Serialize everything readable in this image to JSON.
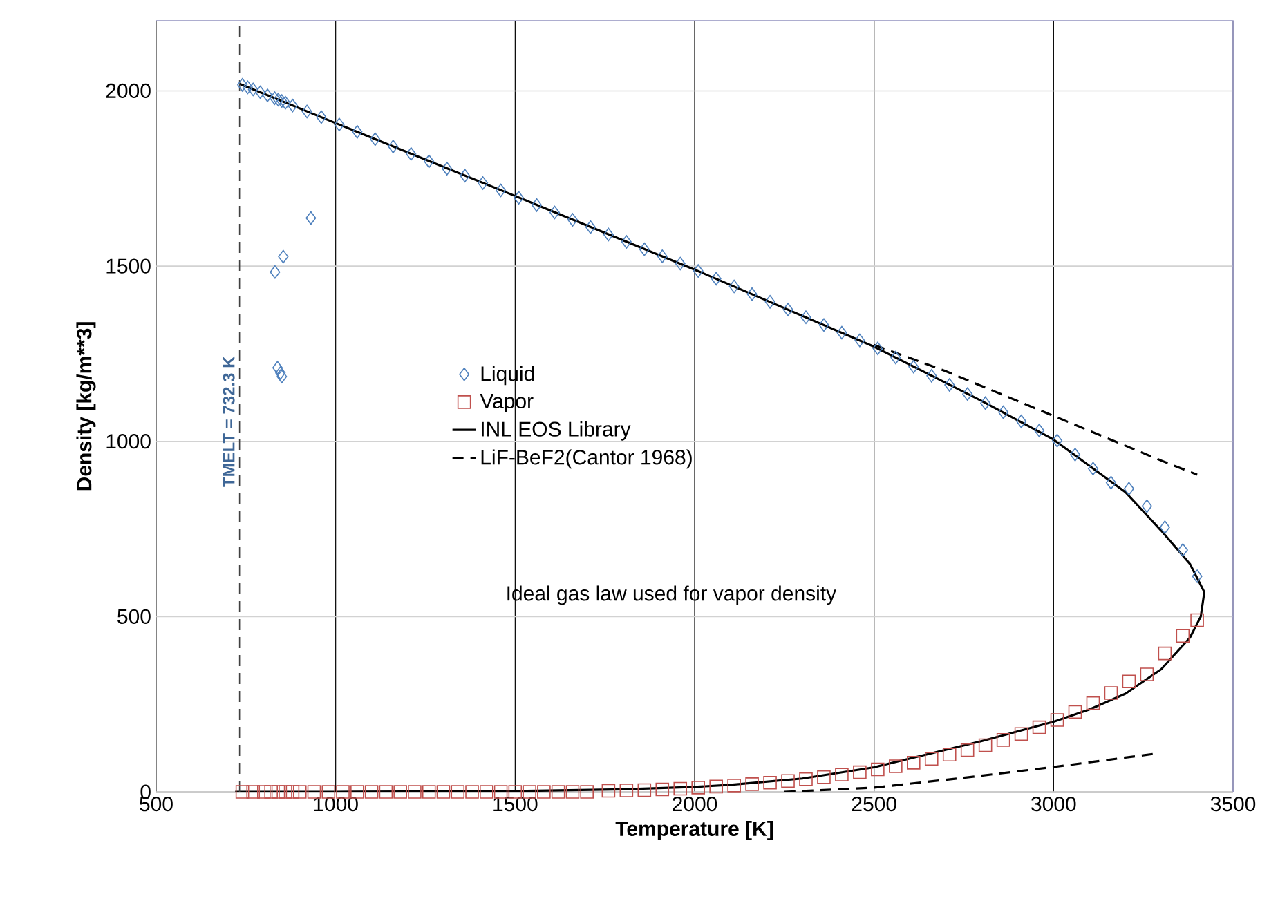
{
  "chart_data": {
    "type": "scatter",
    "xlabel": "Temperature [K]",
    "ylabel": "Density [kg/m**3]",
    "xlim": [
      500,
      3500
    ],
    "ylim": [
      0,
      2200
    ],
    "xticks": [
      500,
      1000,
      1500,
      2000,
      2500,
      3000,
      3500
    ],
    "yticks": [
      0,
      500,
      1000,
      1500,
      2000
    ],
    "grid": true,
    "legend": "center left",
    "annotations": [
      "Ideal gas law used for vapor density"
    ],
    "ref_lines": [
      {
        "axis": "x",
        "value": 732.3,
        "label": "TMELT = 732.3 K",
        "color": "#404040",
        "line_style": "dashed"
      }
    ],
    "series": [
      {
        "name": "Liquid",
        "marker": "diamond",
        "color": "#4f81bd",
        "x": [
          740,
          755,
          770,
          790,
          810,
          830,
          840,
          850,
          860,
          880,
          920,
          960,
          1010,
          1060,
          1110,
          1160,
          1210,
          1260,
          1310,
          1360,
          1410,
          1460,
          1510,
          1560,
          1610,
          1660,
          1710,
          1760,
          1810,
          1860,
          1910,
          1960,
          2010,
          2060,
          2110,
          2160,
          2210,
          2260,
          2310,
          2360,
          2410,
          2460,
          2510,
          2560,
          2610,
          2660,
          2710,
          2760,
          2810,
          2860,
          2910,
          2960,
          3010,
          3060,
          3110,
          3160,
          3210,
          3260,
          3310,
          3360,
          3400,
          931,
          854,
          831,
          846,
          838,
          850
        ],
        "values": [
          2017,
          2010,
          2004,
          1996,
          1987,
          1979,
          1975,
          1971,
          1966,
          1958,
          1941,
          1925,
          1904,
          1883,
          1862,
          1841,
          1820,
          1799,
          1778,
          1758,
          1737,
          1716,
          1695,
          1674,
          1653,
          1632,
          1611,
          1590,
          1569,
          1548,
          1528,
          1507,
          1486,
          1464,
          1442,
          1420,
          1398,
          1376,
          1354,
          1332,
          1310,
          1288,
          1265,
          1239,
          1213,
          1187,
          1161,
          1135,
          1109,
          1083,
          1057,
          1031,
          1002,
          962,
          922,
          882,
          865,
          815,
          755,
          690,
          615,
          1637,
          1527,
          1483,
          1195,
          1210,
          1185
        ]
      },
      {
        "name": "Vapor",
        "marker": "square",
        "color": "#c0504d",
        "x": [
          740,
          770,
          800,
          820,
          840,
          860,
          880,
          900,
          940,
          980,
          1020,
          1060,
          1100,
          1140,
          1180,
          1220,
          1260,
          1300,
          1340,
          1380,
          1420,
          1460,
          1500,
          1540,
          1580,
          1620,
          1660,
          1700,
          1760,
          1810,
          1860,
          1910,
          1960,
          2010,
          2060,
          2110,
          2160,
          2210,
          2260,
          2310,
          2360,
          2410,
          2460,
          2510,
          2560,
          2610,
          2660,
          2710,
          2760,
          2810,
          2860,
          2910,
          2960,
          3010,
          3060,
          3110,
          3160,
          3210,
          3260,
          3310,
          3360,
          3400
        ],
        "values": [
          0,
          0,
          0,
          0,
          0,
          0,
          0,
          0,
          0,
          0,
          0,
          0,
          0,
          0,
          0,
          0,
          0,
          0,
          0,
          0,
          0,
          0,
          0,
          0,
          0,
          0,
          0,
          0,
          3,
          4,
          5,
          7,
          9,
          12,
          15,
          18,
          22,
          26,
          31,
          36,
          42,
          49,
          56,
          64,
          73,
          83,
          94,
          106,
          119,
          133,
          148,
          165,
          184,
          205,
          228,
          253,
          282,
          315,
          335,
          395,
          445,
          490
        ]
      },
      {
        "name": "INL EOS Library",
        "type": "line",
        "line_style": "solid",
        "color": "#000000",
        "x": [
          732,
          1000,
          1500,
          2000,
          2500,
          2800,
          3000,
          3100,
          3200,
          3300,
          3380,
          3420,
          3410,
          3380,
          3300,
          3200,
          3100,
          3000,
          2800,
          2600,
          2500,
          2300,
          2100,
          2000,
          1800,
          1500,
          1000,
          720
        ],
        "values": [
          2020,
          1908,
          1700,
          1490,
          1270,
          1115,
          1005,
          930,
          855,
          745,
          650,
          570,
          500,
          440,
          350,
          280,
          235,
          200,
          145,
          95,
          70,
          38,
          20,
          14,
          7,
          2,
          0,
          0
        ]
      },
      {
        "name": "LiF-BeF2(Cantor 1968)",
        "type": "line",
        "line_style": "dashed",
        "color": "#000000",
        "x": [
          2500,
          2700,
          2900,
          3100,
          3300,
          3400,
          3350,
          2250,
          2500,
          2750,
          3000,
          3292
        ],
        "values": [
          1275,
          1200,
          1115,
          1030,
          945,
          905,
          null,
          0,
          12,
          40,
          71,
          110
        ]
      }
    ]
  }
}
